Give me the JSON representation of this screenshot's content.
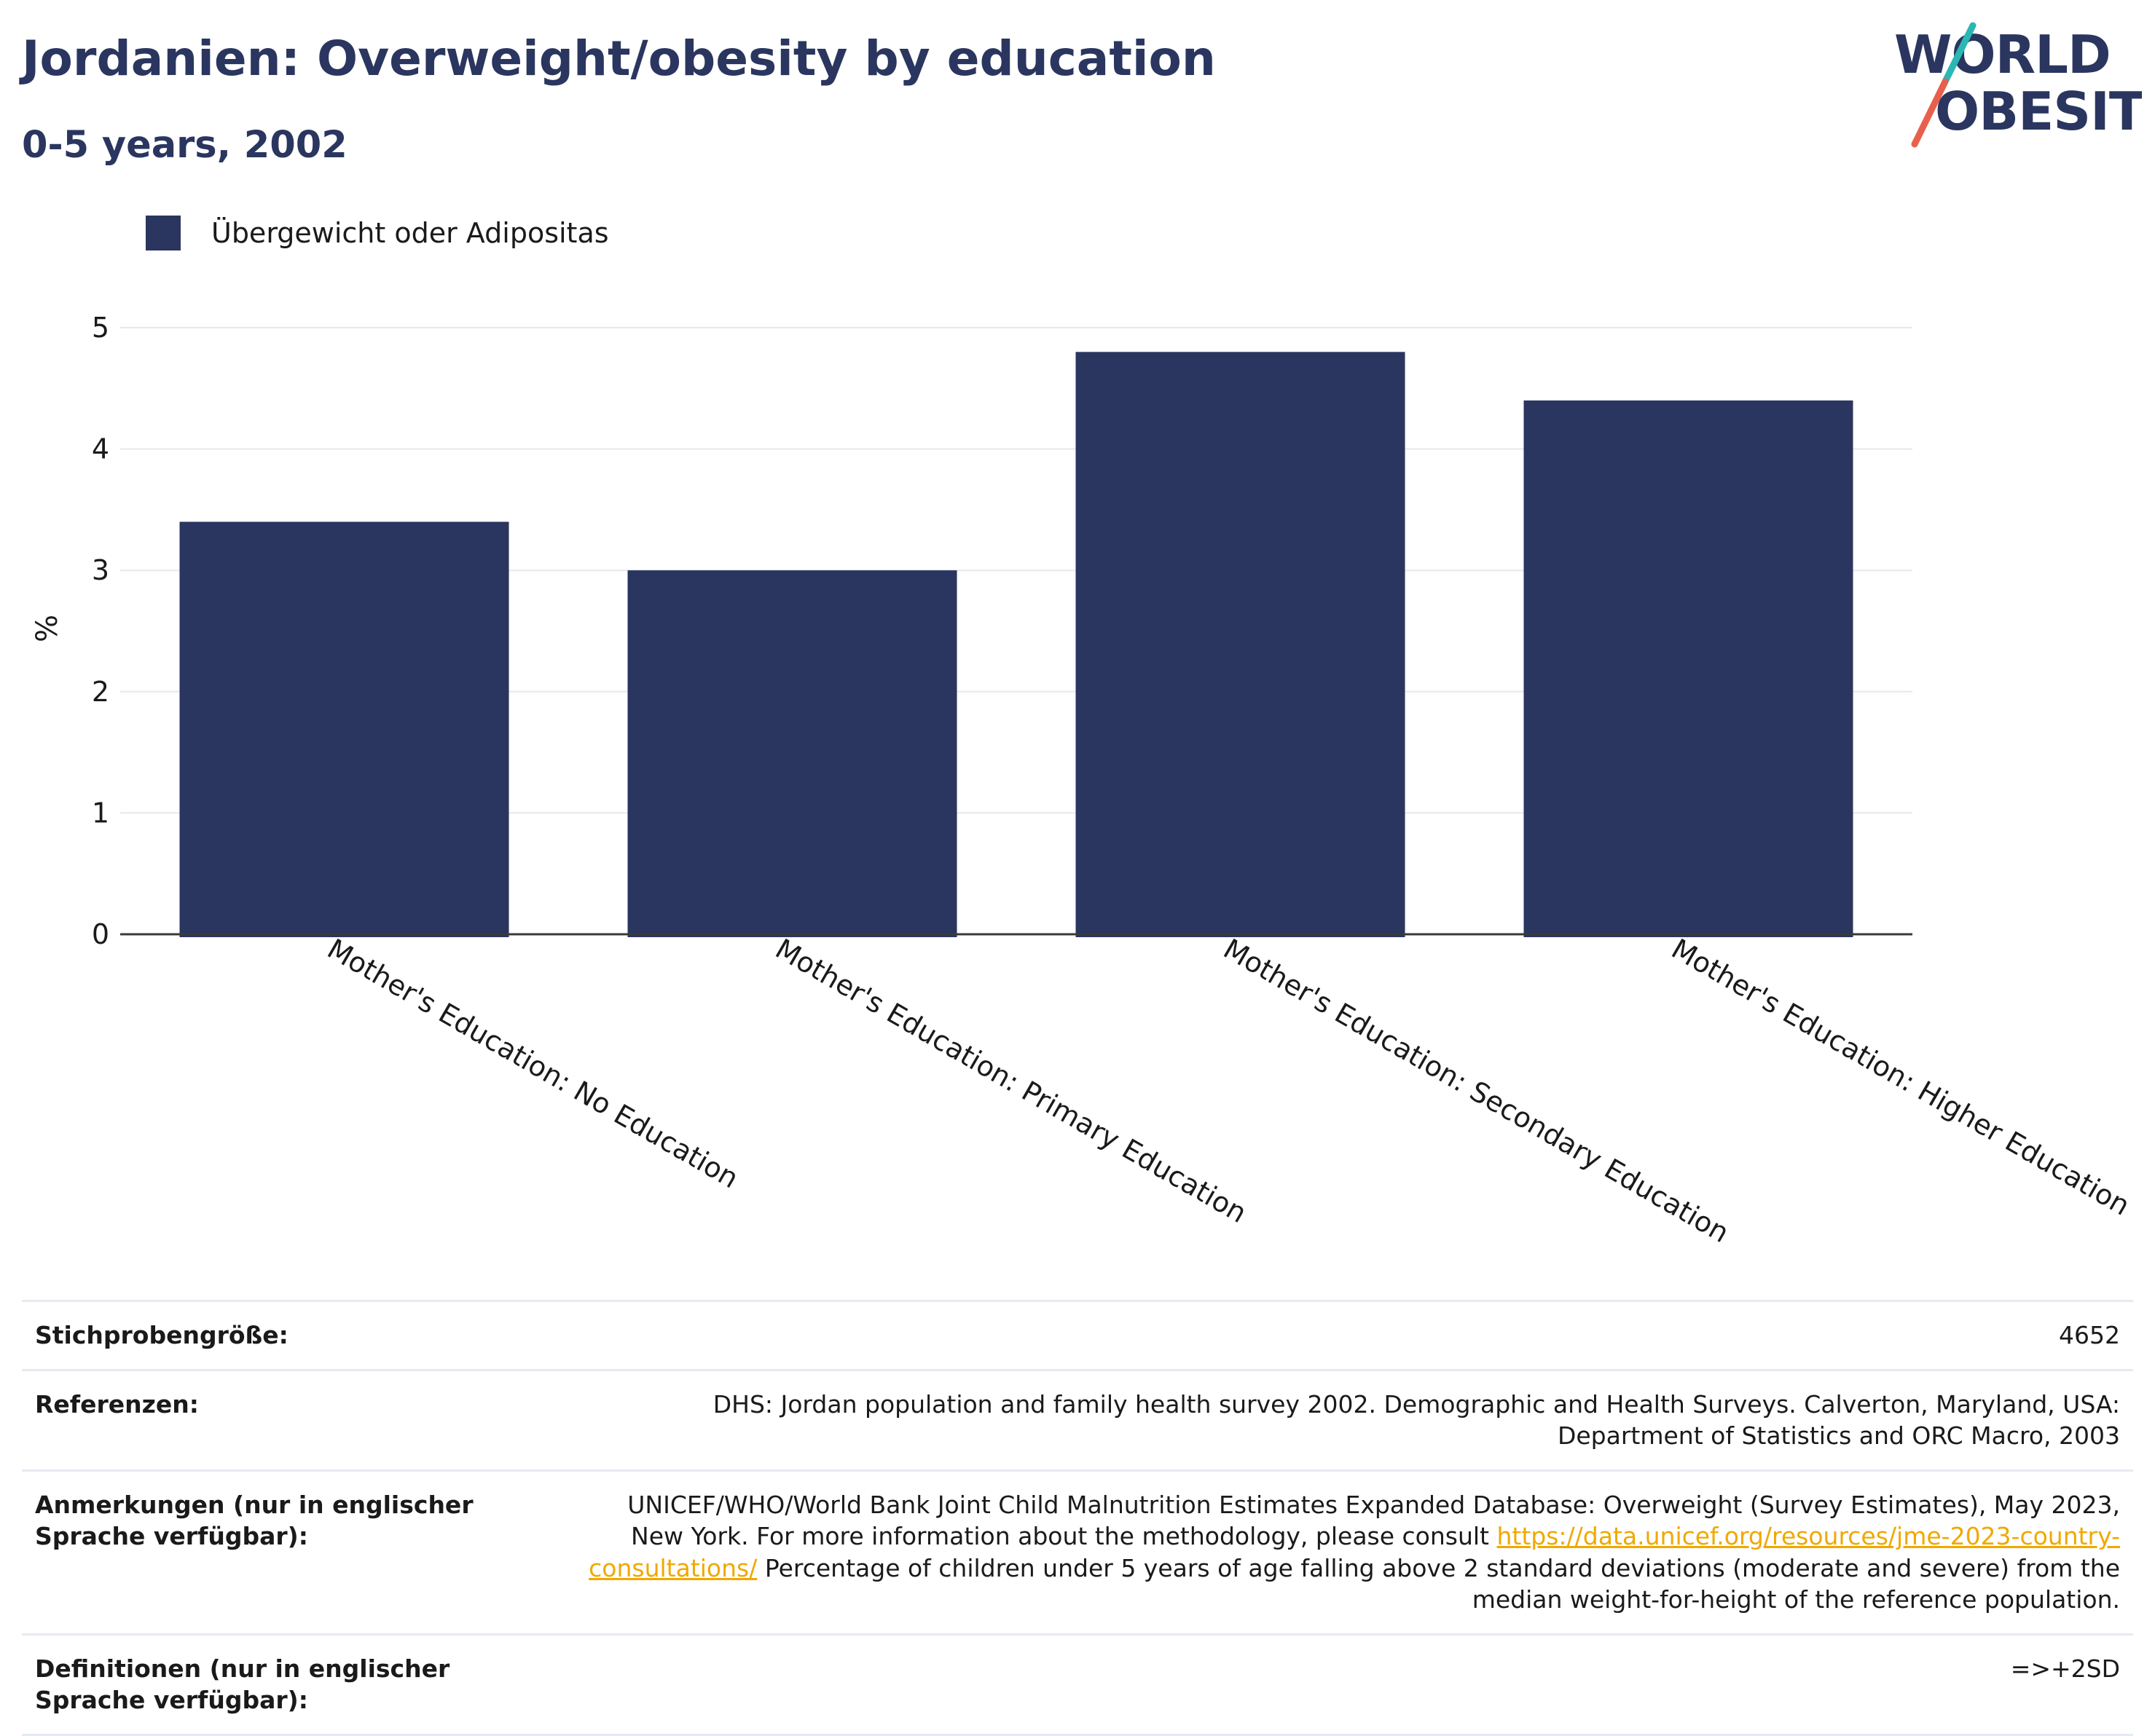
{
  "header": {
    "title": "Jordanien: Overweight/obesity by education",
    "subtitle": "0-5 years, 2002"
  },
  "logo": {
    "line1": "WORLD",
    "line2": "OBESITY",
    "accent_colors": [
      "#2bb7b3",
      "#e8604c"
    ]
  },
  "legend": {
    "label": "Übergewicht oder Adipositas",
    "color": "#2a365f"
  },
  "chart_data": {
    "type": "bar",
    "categories": [
      "Mother's Education: No Education",
      "Mother's Education: Primary Education",
      "Mother's Education: Secondary Education",
      "Mother's Education: Higher Education"
    ],
    "series": [
      {
        "name": "Übergewicht oder Adipositas",
        "values": [
          3.4,
          3.0,
          4.8,
          4.4
        ]
      }
    ],
    "ylabel": "%",
    "xlabel": "",
    "ylim": [
      0,
      5
    ],
    "yticks": [
      0,
      1,
      2,
      3,
      4,
      5
    ],
    "grid": true,
    "bar_color": "#2a365f",
    "legend_position": "top-left"
  },
  "info": {
    "sample_size_label": "Stichprobengröße:",
    "sample_size_value": "4652",
    "references_label": "Referenzen:",
    "references_value": "DHS: Jordan population and family health survey 2002. Demographic and Health Surveys. Calverton, Maryland, USA: Department of Statistics and ORC Macro, 2003",
    "notes_label": "Anmerkungen (nur in englischer Sprache verfügbar):",
    "notes_text_1": "UNICEF/WHO/World Bank Joint Child Malnutrition Estimates Expanded Database: Overweight (Survey Estimates), May 2023, New York. For more information about the methodology, please consult",
    "notes_link": "https://data.unicef.org/resources/jme-2023-country-consultations/",
    "notes_text_2": "Percentage of children under 5 years of age falling above 2 standard deviations (moderate and severe) from the median weight-for-height of the reference population.",
    "definitions_label": "Definitionen (nur in englischer Sprache verfügbar):",
    "definitions_value": "=>+2SD"
  }
}
